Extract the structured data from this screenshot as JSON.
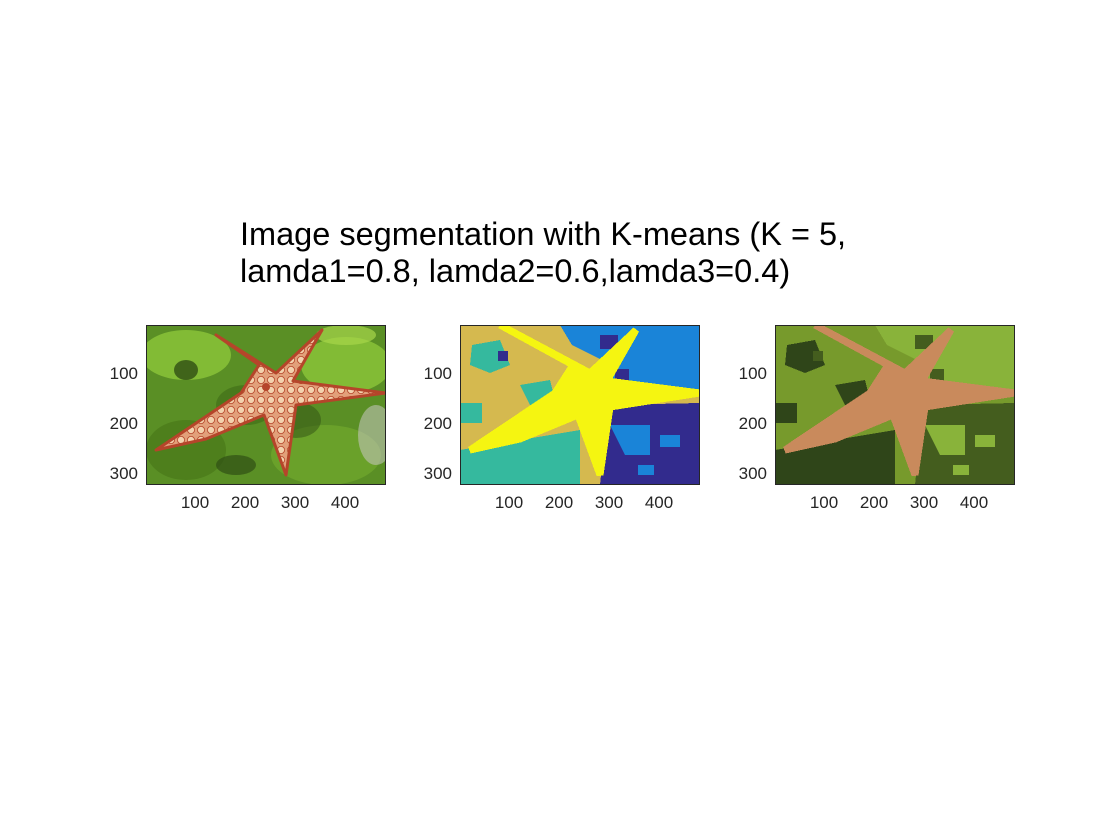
{
  "figure": {
    "title_line1": "Image segmentation with K-means (K = 5,",
    "title_line2": "lamda1=0.8, lamda2=0.6,lamda3=0.4)"
  },
  "axes": {
    "x_ticks": [
      "100",
      "200",
      "300",
      "400"
    ],
    "y_ticks": [
      "100",
      "200",
      "300"
    ],
    "x_range": [
      0.5,
      481.5
    ],
    "y_range": [
      0.5,
      321.5
    ]
  },
  "panels": [
    {
      "id": "original",
      "subject": "starfish-photo",
      "colors": {
        "background": "#5a8f25",
        "background_light": "#8cc63a",
        "background_dark": "#2f4f14",
        "body": "#e8b48a",
        "spots": "#f3d2ae",
        "edge": "#b5452a",
        "rock": "#c9c9c2"
      }
    },
    {
      "id": "cluster-labels",
      "subject": "segmentation-label-map",
      "colors": {
        "cluster_1": "#d5b94f",
        "cluster_2": "#35b99e",
        "cluster_3": "#1a84d8",
        "cluster_4": "#322b8d",
        "cluster_5": "#f5f511"
      }
    },
    {
      "id": "cluster-means",
      "subject": "segmentation-mean-colors",
      "colors": {
        "cluster_1": "#779a2c",
        "cluster_2": "#445d1e",
        "cluster_3": "#2f4519",
        "cluster_4": "#89b33a",
        "cluster_5": "#c98a5c"
      }
    }
  ]
}
